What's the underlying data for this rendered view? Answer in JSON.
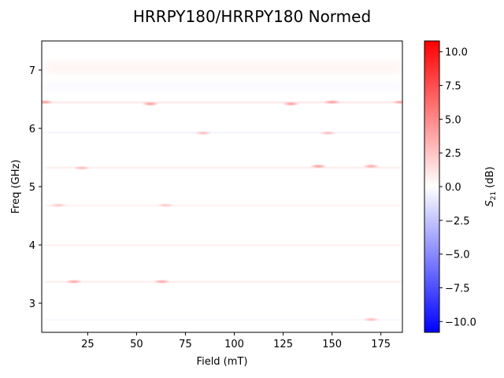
{
  "chart_data": {
    "type": "heatmap",
    "title": "HRRPY180/HRRPY180 Normed",
    "xlabel": "Field (mT)",
    "ylabel": "Freq (GHz)",
    "colorbar_label": "S21 (dB)",
    "colorbar_label_main": "S",
    "colorbar_label_sub": "21",
    "colorbar_label_unit": " (dB)",
    "colormap": "bwr",
    "xlim": [
      1.5,
      186
    ],
    "ylim": [
      2.5,
      7.5
    ],
    "clim": [
      -10.8,
      10.8
    ],
    "x_ticks": [
      25,
      50,
      75,
      100,
      125,
      150,
      175
    ],
    "x_tick_labels": [
      "25",
      "50",
      "75",
      "100",
      "125",
      "150",
      "175"
    ],
    "y_ticks": [
      3,
      4,
      5,
      6,
      7
    ],
    "y_tick_labels": [
      "3",
      "4",
      "5",
      "6",
      "7"
    ],
    "c_ticks": [
      -10,
      -7.5,
      -5,
      -2.5,
      0,
      2.5,
      5,
      7.5,
      10
    ],
    "c_tick_labels": [
      "−10.0",
      "−7.5",
      "−5.0",
      "−2.5",
      "0.0",
      "2.5",
      "5.0",
      "7.5",
      "10.0"
    ],
    "data_extent": {
      "x": [
        3,
        186
      ],
      "y": [
        2.6,
        7.5
      ]
    },
    "bands": [
      {
        "freq": 7.05,
        "width": 0.22,
        "value": 0.8,
        "kind": "broad"
      },
      {
        "freq": 6.72,
        "width": 0.12,
        "value": -0.6,
        "kind": "broad"
      },
      {
        "freq": 6.45,
        "width": 0.02,
        "value": 2.5,
        "kind": "line"
      },
      {
        "freq": 5.93,
        "width": 0.02,
        "value": -1.2,
        "kind": "line"
      },
      {
        "freq": 5.33,
        "width": 0.02,
        "value": 1.6,
        "kind": "line"
      },
      {
        "freq": 4.68,
        "width": 0.02,
        "value": 1.3,
        "kind": "line"
      },
      {
        "freq": 4.0,
        "width": 0.02,
        "value": 1.6,
        "kind": "line"
      },
      {
        "freq": 3.37,
        "width": 0.02,
        "value": 2.0,
        "kind": "line"
      },
      {
        "freq": 2.72,
        "width": 0.02,
        "value": -0.8,
        "kind": "line"
      }
    ],
    "hotspots": [
      {
        "x": 3,
        "y": 6.45,
        "value": 4.5
      },
      {
        "x": 57,
        "y": 6.42,
        "value": 4.5
      },
      {
        "x": 129,
        "y": 6.42,
        "value": 4.5
      },
      {
        "x": 150,
        "y": 6.45,
        "value": 4.5
      },
      {
        "x": 185,
        "y": 6.45,
        "value": 4.0
      },
      {
        "x": 143,
        "y": 5.35,
        "value": 4.5
      },
      {
        "x": 170,
        "y": 5.35,
        "value": 4.0
      },
      {
        "x": 22,
        "y": 5.32,
        "value": 3.0
      },
      {
        "x": 18,
        "y": 3.37,
        "value": 4.0
      },
      {
        "x": 63,
        "y": 3.37,
        "value": 4.0
      },
      {
        "x": 170,
        "y": 2.72,
        "value": 3.0
      },
      {
        "x": 84,
        "y": 5.92,
        "value": 3.0
      },
      {
        "x": 148,
        "y": 5.92,
        "value": 3.0
      },
      {
        "x": 10,
        "y": 4.68,
        "value": 2.5
      },
      {
        "x": 65,
        "y": 4.68,
        "value": 2.5
      }
    ]
  }
}
